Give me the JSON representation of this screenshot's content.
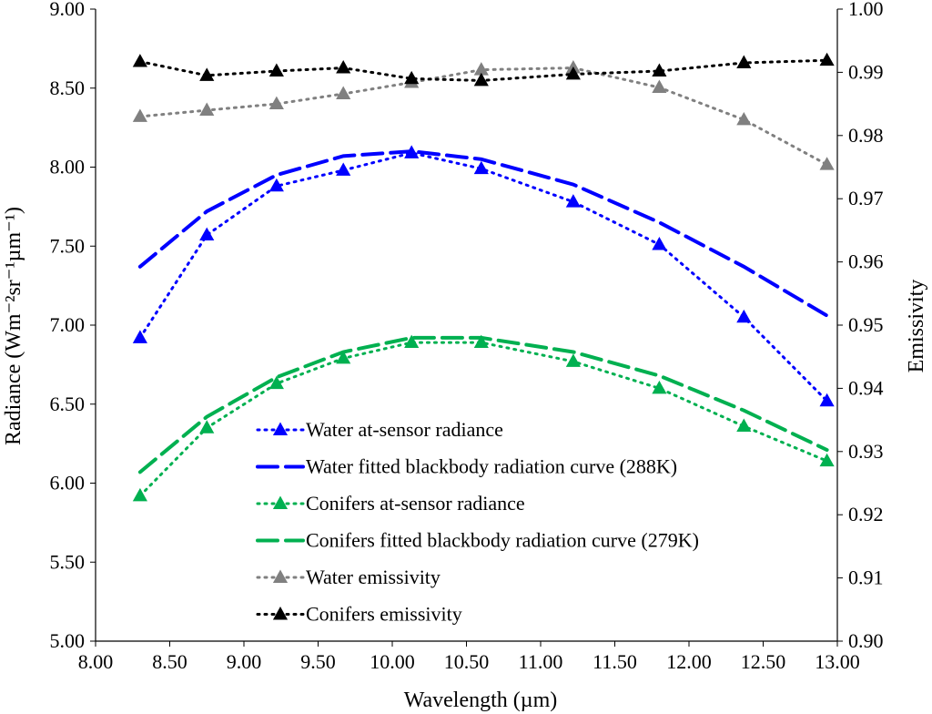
{
  "chart_data": {
    "type": "line",
    "xlabel": "Wavelength (µm)",
    "ylabel_left": "Radiance (Wm⁻²sr⁻¹µm⁻¹)",
    "ylabel_right": "Emissivity",
    "xlim": [
      8.0,
      13.0
    ],
    "ylim_left": [
      5.0,
      9.0
    ],
    "ylim_right": [
      0.9,
      1.0
    ],
    "x_ticks": [
      "8.00",
      "8.50",
      "9.00",
      "9.50",
      "10.00",
      "10.50",
      "11.00",
      "11.50",
      "12.00",
      "12.50",
      "13.00"
    ],
    "y_left_ticks": [
      "5.00",
      "5.50",
      "6.00",
      "6.50",
      "7.00",
      "7.50",
      "8.00",
      "8.50",
      "9.00"
    ],
    "y_right_ticks": [
      "0.90",
      "0.91",
      "0.92",
      "0.93",
      "0.94",
      "0.95",
      "0.96",
      "0.97",
      "0.98",
      "0.99",
      "1.00"
    ],
    "x": [
      8.3,
      8.75,
      9.22,
      9.67,
      10.13,
      10.6,
      11.22,
      11.8,
      12.37,
      12.93
    ],
    "grid": false,
    "legend_position": "bottom-center",
    "series": [
      {
        "name": "Water at-sensor radiance",
        "axis": "left",
        "color": "#0000ff",
        "style": "dotted",
        "marker": "triangle",
        "values": [
          6.92,
          7.57,
          7.88,
          7.98,
          8.09,
          7.99,
          7.78,
          7.51,
          7.05,
          6.52
        ]
      },
      {
        "name": "Water fitted blackbody radiation curve (288K)",
        "axis": "left",
        "color": "#0000ff",
        "style": "dashed",
        "marker": "none",
        "values": [
          7.37,
          7.72,
          7.95,
          8.07,
          8.1,
          8.05,
          7.89,
          7.65,
          7.37,
          7.06
        ]
      },
      {
        "name": "Conifers at-sensor radiance",
        "axis": "left",
        "color": "#00b050",
        "style": "dotted",
        "marker": "triangle",
        "values": [
          5.92,
          6.35,
          6.63,
          6.79,
          6.89,
          6.89,
          6.77,
          6.6,
          6.36,
          6.14
        ]
      },
      {
        "name": "Conifers fitted blackbody radiation curve (279K)",
        "axis": "left",
        "color": "#00b050",
        "style": "dashed",
        "marker": "none",
        "values": [
          6.07,
          6.42,
          6.67,
          6.83,
          6.92,
          6.92,
          6.83,
          6.68,
          6.46,
          6.21
        ]
      },
      {
        "name": "Water emissivity",
        "axis": "right",
        "color": "#808080",
        "style": "dotted",
        "marker": "triangle",
        "values": [
          0.983,
          0.984,
          0.985,
          0.9866,
          0.9884,
          0.9904,
          0.9907,
          0.9876,
          0.9825,
          0.9754
        ]
      },
      {
        "name": "Conifers emissivity",
        "axis": "right",
        "color": "#000000",
        "style": "dotted",
        "marker": "triangle",
        "values": [
          0.9917,
          0.9895,
          0.9902,
          0.9907,
          0.989,
          0.9887,
          0.9897,
          0.9902,
          0.9915,
          0.9919
        ]
      }
    ]
  }
}
